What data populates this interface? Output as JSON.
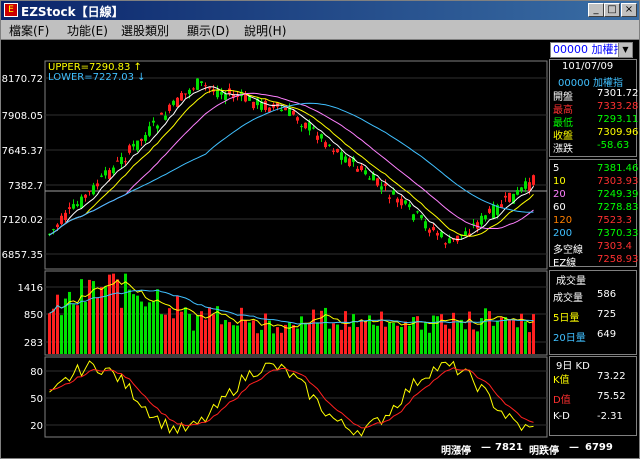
{
  "window": {
    "title": "EZStock【日線】"
  },
  "menu": [
    "檔案(F)",
    "功能(E)",
    "選股類別",
    "顯示(D)",
    "說明(H)"
  ],
  "symbol_select": "00000 加權指",
  "chart_data": [
    {
      "type": "candlestick",
      "name": "price",
      "yticks": [
        "8170.72",
        "7908.05",
        "7645.37",
        "7382.7",
        "7120.02",
        "6857.35"
      ],
      "ytick_values": [
        8170.72,
        7908.05,
        7645.37,
        7382.7,
        7120.02,
        6857.35
      ],
      "annotations": {
        "upper": "UPPER=7290.83 ↑",
        "lower": "LOWER=7227.03 ↓"
      }
    },
    {
      "type": "bar",
      "name": "volume",
      "yticks": [
        "1416",
        "850",
        "283"
      ],
      "ytick_values": [
        1416,
        850,
        283
      ]
    },
    {
      "type": "line",
      "name": "KD",
      "yticks": [
        "80",
        "50",
        "20"
      ],
      "ytick_values": [
        80,
        50,
        20
      ]
    }
  ],
  "info": {
    "date": "101/07/09",
    "symbol": "00000 加權指",
    "rows": [
      {
        "label": "開盤",
        "value": "7301.72",
        "lcolor": "#ffffff",
        "vcolor": "#ffffff"
      },
      {
        "label": "最高",
        "value": "7333.28",
        "lcolor": "#ff3030",
        "vcolor": "#ff3030"
      },
      {
        "label": "最低",
        "value": "7293.11",
        "lcolor": "#00ff00",
        "vcolor": "#00ff00"
      },
      {
        "label": "收盤",
        "value": "7309.96",
        "lcolor": "#ffff00",
        "vcolor": "#ffff00"
      },
      {
        "label": "漲跌",
        "value": "-58.63",
        "lcolor": "#ffffff",
        "vcolor": "#00ff00"
      }
    ]
  },
  "ma": [
    {
      "label": "5",
      "value": "7381.46",
      "lcolor": "#ffffff",
      "vcolor": "#00ff00"
    },
    {
      "label": "10",
      "value": "7303.93",
      "lcolor": "#ffff00",
      "vcolor": "#ff3030"
    },
    {
      "label": "20",
      "value": "7249.39",
      "lcolor": "#ff80ff",
      "vcolor": "#00ff00"
    },
    {
      "label": "60",
      "value": "7278.83",
      "lcolor": "#ffffff",
      "vcolor": "#00ff00"
    },
    {
      "label": "120",
      "value": "7523.3",
      "lcolor": "#ff8000",
      "vcolor": "#ff3030"
    },
    {
      "label": "200",
      "value": "7370.33",
      "lcolor": "#40c0ff",
      "vcolor": "#00ff00"
    },
    {
      "label": "多空線",
      "value": "7303.4",
      "lcolor": "#ffffff",
      "vcolor": "#ff3030"
    },
    {
      "label": "EZ線",
      "value": "7258.93",
      "lcolor": "#ffffff",
      "vcolor": "#ff3030"
    }
  ],
  "volume": {
    "title": "成交量",
    "rows": [
      {
        "label": "成交量",
        "value": "586",
        "lcolor": "#ffffff",
        "vcolor": "#ffffff"
      },
      {
        "label": "5日量",
        "value": "725",
        "lcolor": "#ffff00",
        "vcolor": "#ffffff"
      },
      {
        "label": "20日量",
        "value": "649",
        "lcolor": "#40c0ff",
        "vcolor": "#ffffff"
      }
    ]
  },
  "kd": {
    "title": "9日 KD",
    "rows": [
      {
        "label": "K值",
        "value": "73.22",
        "lcolor": "#ffff00",
        "vcolor": "#ffffff"
      },
      {
        "label": "D值",
        "value": "75.52",
        "lcolor": "#ff3030",
        "vcolor": "#ffffff"
      },
      {
        "label": "K-D",
        "value": "-2.31",
        "lcolor": "#ffffff",
        "vcolor": "#ffffff"
      }
    ]
  },
  "status": {
    "limit_up_label": "明漲停",
    "limit_up": "7821",
    "limit_down_label": "明跌停",
    "limit_down": "6799"
  }
}
